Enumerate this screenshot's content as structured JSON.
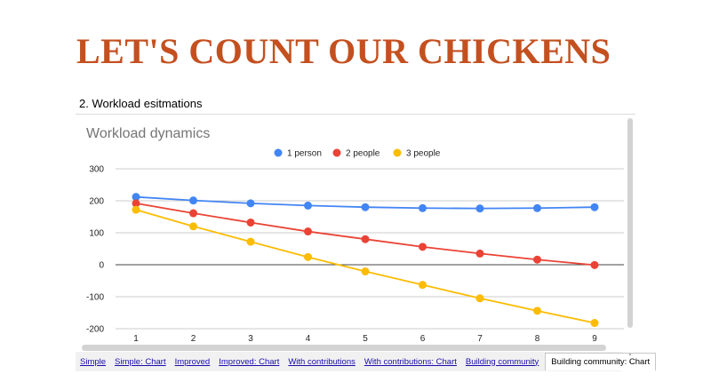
{
  "slide": {
    "title": "LET'S COUNT OUR CHICKENS"
  },
  "section": {
    "heading": "2. Workload esitmations"
  },
  "colors": {
    "title": "#c4501f",
    "series1": "#4285f4",
    "series2": "#ea4335",
    "series3": "#fbbc04"
  },
  "chart_data": {
    "type": "line",
    "title": "Workload dynamics",
    "xlabel": "",
    "ylabel": "",
    "x": [
      1,
      2,
      3,
      4,
      5,
      6,
      7,
      8,
      9
    ],
    "ylim": [
      -200,
      300
    ],
    "yticks": [
      300,
      200,
      100,
      0,
      -100,
      -200
    ],
    "grid": true,
    "legend": "top-center",
    "series": [
      {
        "name": "1 person",
        "color": "#4285f4",
        "values": [
          212,
          201,
          192,
          185,
          180,
          177,
          176,
          177,
          180
        ]
      },
      {
        "name": "2 people",
        "color": "#ea4335",
        "values": [
          192,
          161,
          132,
          104,
          80,
          56,
          35,
          16,
          -1
        ]
      },
      {
        "name": "3 people",
        "color": "#fbbc04",
        "values": [
          172,
          120,
          72,
          24,
          -21,
          -63,
          -105,
          -144,
          -182
        ]
      }
    ]
  },
  "tabs": {
    "items": [
      {
        "label": "Simple"
      },
      {
        "label": "Simple: Chart"
      },
      {
        "label": "Improved"
      },
      {
        "label": "Improved: Chart"
      },
      {
        "label": "With contributions"
      },
      {
        "label": "With contributions: Chart"
      },
      {
        "label": "Building community"
      },
      {
        "label": "Building community: Chart"
      }
    ],
    "active_index": 7,
    "nav_up": "˄",
    "nav_down": "˅"
  }
}
